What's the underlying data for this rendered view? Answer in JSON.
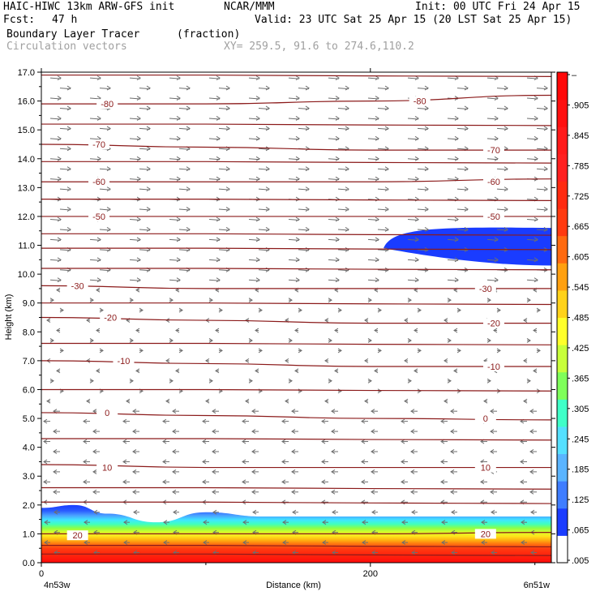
{
  "header": {
    "model": "HAIC-HIWC 13km ARW-GFS init",
    "center": "NCAR/MMM",
    "init": "Init: 00 UTC Fri 24 Apr 15",
    "fcst_label": "Fcst:",
    "fcst_value": "47 h",
    "valid": "Valid: 23 UTC Sat 25 Apr 15 (20 LST Sat 25 Apr 15)",
    "field": "Boundary Layer Tracer",
    "units": "(fraction)",
    "overlay": "Circulation vectors",
    "xy": "XY= 259.5, 91.6 to 274.6,110.2"
  },
  "colors": {
    "contour": "#8b1a1a",
    "vector": "#6e6e6e",
    "tracer_scale": [
      "#ffffff",
      "#1a3cff",
      "#3f7dff",
      "#5ab4ff",
      "#55e0ff",
      "#3fffc8",
      "#7fff5a",
      "#c8ff3a",
      "#ffff2a",
      "#ffd21a",
      "#ffa010",
      "#ff6a10",
      "#ff3a10",
      "#ff2a10",
      "#ff2020",
      "#ff1a1a",
      "#ff1010",
      "#ff0808"
    ]
  },
  "chart_data": {
    "type": "cross-section",
    "xlabel": "Distance (km)",
    "ylabel": "Height (km)",
    "xlim": [
      0,
      310
    ],
    "ylim": [
      0,
      17
    ],
    "x_ticks": [
      0,
      200
    ],
    "x_ticklabels": [
      "0",
      "200"
    ],
    "x_endpoint_labels": [
      "4n53w",
      "6n51w"
    ],
    "y_ticks": [
      0,
      1,
      2,
      3,
      4,
      5,
      6,
      7,
      8,
      9,
      10,
      11,
      12,
      13,
      14,
      15,
      16,
      17
    ],
    "y_ticklabels": [
      "0.0",
      "1.0",
      "2.0",
      "3.0",
      "4.0",
      "5.0",
      "6.0",
      "7.0",
      "8.0",
      "9.0",
      "10.0",
      "11.0",
      "12.0",
      "13.0",
      "14.0",
      "15.0",
      "16.0",
      "17.0"
    ],
    "colorbar": {
      "labels": [
        "–",
        ".905",
        ".845",
        ".785",
        ".725",
        ".665",
        ".605",
        ".545",
        ".485",
        ".425",
        ".365",
        ".305",
        ".245",
        ".185",
        ".125",
        ".065",
        ".005"
      ]
    },
    "temperature_contours": [
      {
        "label": "-80",
        "label_at": [
          [
            40,
            15.9
          ],
          [
            230,
            16.0
          ]
        ],
        "y": [
          15.9,
          15.9,
          16.0,
          16.2
        ]
      },
      {
        "label": "-70",
        "label_at": [
          [
            35,
            14.5
          ],
          [
            275,
            14.3
          ]
        ],
        "y": [
          14.5,
          14.4,
          14.3,
          14.3
        ]
      },
      {
        "label": "-60",
        "label_at": [
          [
            35,
            13.2
          ],
          [
            275,
            13.2
          ]
        ],
        "y": [
          13.2,
          13.2,
          13.2,
          13.3
        ]
      },
      {
        "label": "-50",
        "label_at": [
          [
            35,
            12.0
          ],
          [
            275,
            12.0
          ]
        ],
        "y": [
          12.0,
          12.0,
          12.0,
          12.0
        ]
      },
      {
        "label": "-30",
        "label_at": [
          [
            22,
            9.6
          ],
          [
            270,
            9.5
          ]
        ],
        "y": [
          9.6,
          9.5,
          9.5,
          9.5
        ]
      },
      {
        "label": "-20",
        "label_at": [
          [
            42,
            8.5
          ],
          [
            275,
            8.3
          ]
        ],
        "y": [
          8.5,
          8.4,
          8.3,
          8.3
        ]
      },
      {
        "label": "-10",
        "label_at": [
          [
            50,
            7.0
          ],
          [
            275,
            6.8
          ]
        ],
        "y": [
          7.0,
          6.9,
          6.8,
          6.8
        ]
      },
      {
        "label": "0",
        "label_at": [
          [
            40,
            5.2
          ],
          [
            270,
            5.0
          ]
        ],
        "y": [
          5.2,
          5.1,
          5.0,
          4.95
        ]
      },
      {
        "label": "10",
        "label_at": [
          [
            40,
            3.3
          ],
          [
            270,
            3.3
          ]
        ],
        "y": [
          3.4,
          3.3,
          3.3,
          3.3
        ]
      },
      {
        "label": "20",
        "label_at": [
          [
            22,
            0.95
          ],
          [
            270,
            1.0
          ]
        ],
        "y": [
          1.0,
          1.0,
          1.0,
          1.05
        ]
      }
    ],
    "extra_contours_y": [
      16.9,
      15.2,
      13.9,
      12.6,
      11.4,
      10.9,
      10.2,
      9.0,
      7.6,
      6.0,
      4.3,
      2.6,
      2.1,
      0.6,
      0.3
    ],
    "tracer_upper_layer": {
      "x_range": [
        208,
        310
      ],
      "top_km": 11.6,
      "bottom_km": 10.3,
      "fraction": 0.03
    },
    "tracer_boundary_layer_top_km": [
      [
        0,
        1.9
      ],
      [
        20,
        2.0
      ],
      [
        40,
        1.7
      ],
      [
        70,
        1.4
      ],
      [
        100,
        1.75
      ],
      [
        135,
        1.6
      ],
      [
        200,
        1.6
      ],
      [
        310,
        1.6
      ]
    ],
    "wind_regime": [
      {
        "from_km": 0,
        "to_km": 1.8,
        "direction": "westward"
      },
      {
        "from_km": 1.8,
        "to_km": 5.5,
        "direction": "westward"
      },
      {
        "from_km": 5.5,
        "to_km": 9.5,
        "direction": "weak/variable"
      },
      {
        "from_km": 9.5,
        "to_km": 17,
        "direction": "eastward"
      }
    ]
  }
}
